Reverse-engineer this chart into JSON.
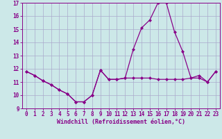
{
  "xlabel": "Windchill (Refroidissement éolien,°C)",
  "x": [
    0,
    1,
    2,
    3,
    4,
    5,
    6,
    7,
    8,
    9,
    10,
    11,
    12,
    13,
    14,
    15,
    16,
    17,
    18,
    19,
    20,
    21,
    22,
    23
  ],
  "line1": [
    11.8,
    11.5,
    11.1,
    10.8,
    10.4,
    10.1,
    9.5,
    9.5,
    10.0,
    11.9,
    11.2,
    11.2,
    11.3,
    11.3,
    11.3,
    11.3,
    11.2,
    11.2,
    11.2,
    11.2,
    11.3,
    11.3,
    11.0,
    11.8
  ],
  "line2": [
    11.8,
    11.5,
    11.1,
    10.8,
    10.4,
    10.1,
    9.5,
    9.5,
    10.0,
    11.9,
    11.2,
    11.2,
    11.3,
    13.5,
    15.1,
    15.7,
    17.0,
    17.0,
    14.8,
    13.3,
    11.3,
    11.5,
    11.0,
    11.8
  ],
  "ylim": [
    9,
    17
  ],
  "xlim": [
    -0.5,
    23.5
  ],
  "yticks": [
    9,
    10,
    11,
    12,
    13,
    14,
    15,
    16,
    17
  ],
  "xticks": [
    0,
    1,
    2,
    3,
    4,
    5,
    6,
    7,
    8,
    9,
    10,
    11,
    12,
    13,
    14,
    15,
    16,
    17,
    18,
    19,
    20,
    21,
    22,
    23
  ],
  "line_color": "#880088",
  "bg_color": "#cce8e8",
  "grid_color": "#aaaacc",
  "marker": "D",
  "marker_size": 2.0,
  "line_width": 0.9,
  "tick_fontsize": 5.5,
  "label_fontsize": 6.0
}
